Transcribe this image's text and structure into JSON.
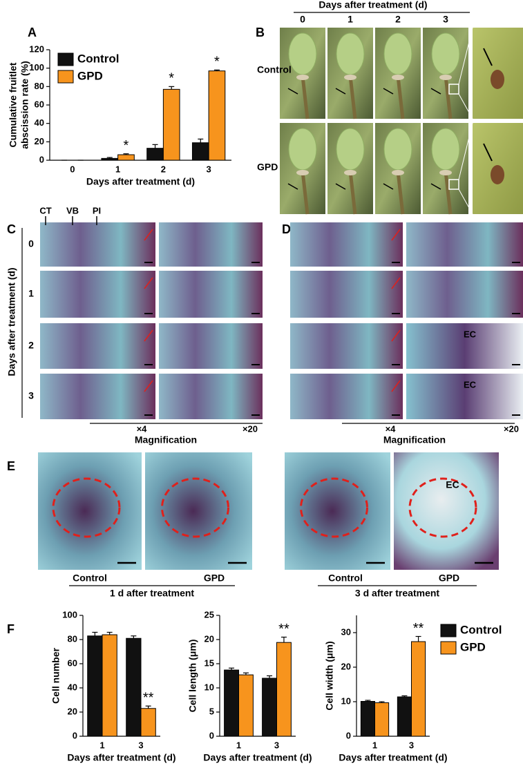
{
  "panel_labels": [
    "A",
    "B",
    "C",
    "D",
    "E",
    "F"
  ],
  "chart_data": [
    {
      "type": "bar",
      "ylabel": [
        "Cumulative fruitlet",
        "abscission rate (%)"
      ],
      "xlabel": "Days after treatment (d)",
      "categories": [
        "0",
        "1",
        "2",
        "3"
      ],
      "series": [
        {
          "name": "Control",
          "color": "#111111",
          "values": [
            0,
            2,
            13,
            19
          ],
          "errors": [
            0,
            1,
            4,
            4
          ]
        },
        {
          "name": "GPD",
          "color": "#f7941d",
          "values": [
            0,
            6,
            77,
            97
          ],
          "errors": [
            0,
            1,
            3,
            1
          ],
          "significance": [
            null,
            "*",
            "*",
            "*"
          ]
        }
      ],
      "ylim": [
        0,
        120
      ],
      "yticks": [
        0,
        20,
        40,
        60,
        80,
        100,
        120
      ],
      "legend": "upper-left"
    },
    {
      "type": "bar",
      "ylabel": "Cell number",
      "xlabel": "Days after treatment (d)",
      "categories": [
        "1",
        "3"
      ],
      "series": [
        {
          "color": "#111111",
          "values": [
            83,
            81
          ],
          "errors": [
            3,
            2
          ]
        },
        {
          "color": "#f7941d",
          "values": [
            84,
            23
          ],
          "errors": [
            2,
            2
          ],
          "significance": [
            null,
            "**"
          ]
        }
      ],
      "ylim": [
        0,
        100
      ],
      "yticks": [
        0,
        20,
        40,
        60,
        80,
        100
      ]
    },
    {
      "type": "bar",
      "ylabel": "Cell length (μm)",
      "xlabel": "Days after treatment (d)",
      "categories": [
        "1",
        "3"
      ],
      "series": [
        {
          "color": "#111111",
          "values": [
            13.7,
            12.0
          ],
          "errors": [
            0.4,
            0.5
          ]
        },
        {
          "color": "#f7941d",
          "values": [
            12.7,
            19.4
          ],
          "errors": [
            0.4,
            1.1
          ],
          "significance": [
            null,
            "**"
          ]
        }
      ],
      "ylim": [
        0,
        25
      ],
      "yticks": [
        0,
        5,
        10,
        15,
        20,
        25
      ]
    },
    {
      "type": "bar",
      "ylabel": "Cell width (μm)",
      "xlabel": "Days after treatment (d)",
      "categories": [
        "1",
        "3"
      ],
      "series": [
        {
          "name": "Control",
          "color": "#111111",
          "values": [
            10.1,
            11.4
          ],
          "errors": [
            0.3,
            0.3
          ]
        },
        {
          "name": "GPD",
          "color": "#f7941d",
          "values": [
            9.7,
            27.4
          ],
          "errors": [
            0.3,
            1.5
          ],
          "significance": [
            null,
            "**"
          ]
        }
      ],
      "ylim": [
        0,
        35
      ],
      "yticks": [
        0,
        10,
        20,
        30
      ],
      "legend": "outside-right"
    }
  ],
  "panel_b": {
    "header": "Days after treatment (d)",
    "days": [
      "0",
      "1",
      "2",
      "3"
    ],
    "rows": [
      "Control",
      "GPD"
    ]
  },
  "panel_c": {
    "markers": [
      "CT",
      "VB",
      "PI"
    ],
    "side_label": "Days after treatment (d)",
    "days": [
      "0",
      "1",
      "2",
      "3"
    ],
    "magnifications": [
      "×4",
      "×20"
    ],
    "footer": "Magnification"
  },
  "panel_d": {
    "labels": [
      "EC",
      "EC"
    ],
    "magnifications": [
      "×4",
      "×20"
    ],
    "footer": "Magnification"
  },
  "panel_e": {
    "groups": [
      {
        "samples": [
          "Control",
          "GPD"
        ],
        "caption": "1 d after treatment"
      },
      {
        "samples": [
          "Control",
          "GPD"
        ],
        "caption": "3 d after treatment",
        "label": "EC"
      }
    ]
  }
}
